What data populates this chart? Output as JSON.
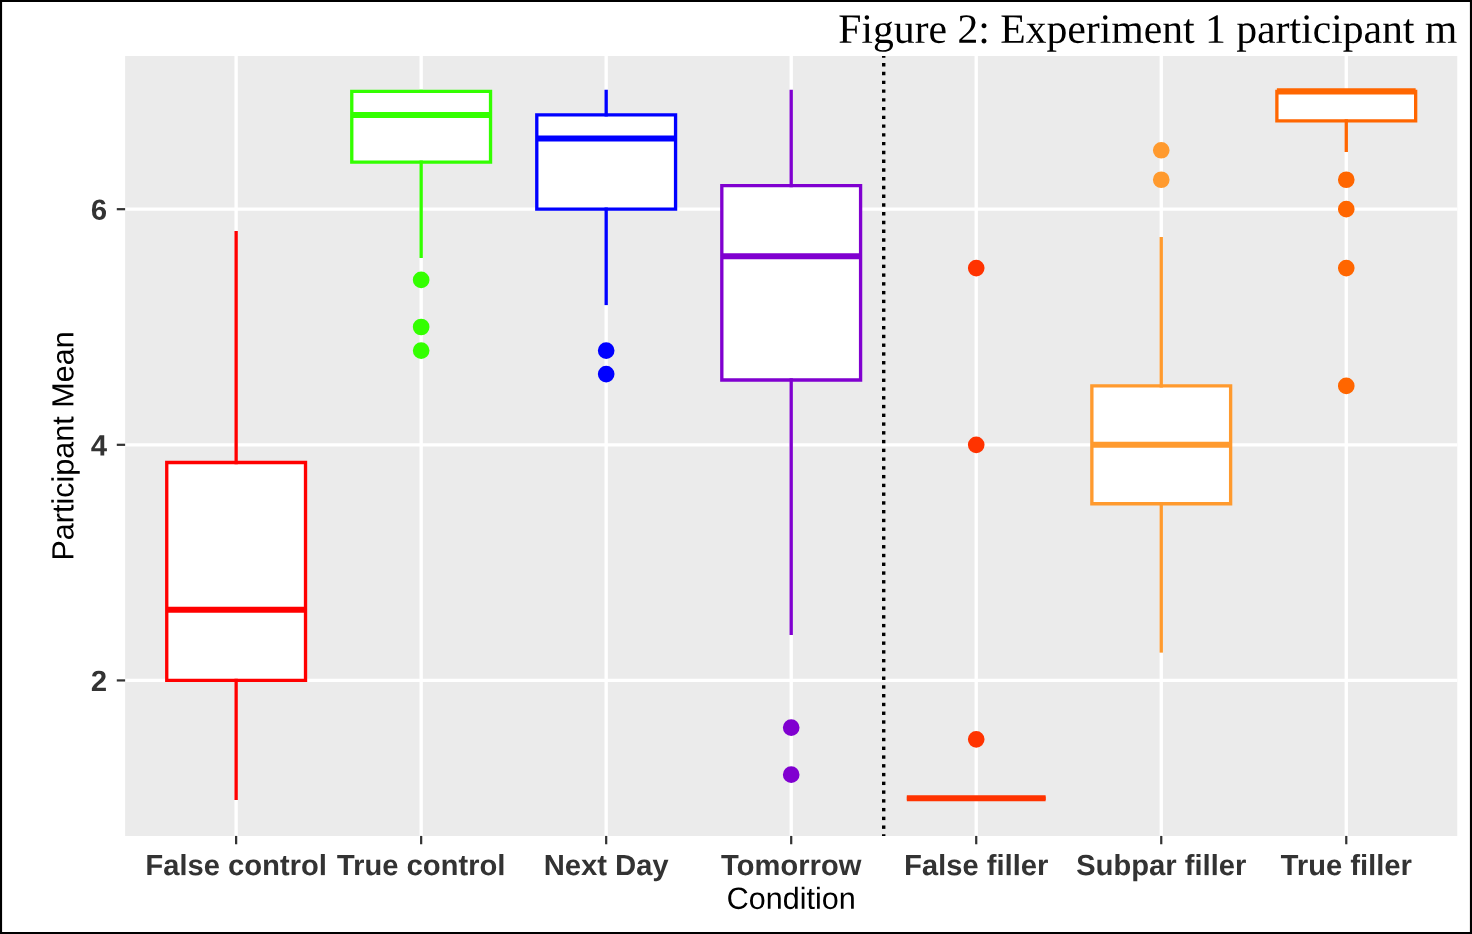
{
  "chart_data": {
    "type": "box",
    "title": "Figure 2: Experiment 1 participant m",
    "xlabel": "Condition",
    "ylabel": "Participant Mean",
    "categories": [
      "False control",
      "True control",
      "Next Day",
      "Tomorrow",
      "False filler",
      "Subpar filler",
      "True filler"
    ],
    "colors": [
      "#ff0000",
      "#33ff00",
      "#0000ff",
      "#8000d0",
      "#ff3300",
      "#ff9a2e",
      "#ff6600"
    ],
    "boxes": [
      {
        "low": 1.0,
        "q1": 2.0,
        "median": 2.6,
        "q3": 3.85,
        "high": 5.8
      },
      {
        "low": 5.6,
        "q1": 6.4,
        "median": 6.8,
        "q3": 7.0,
        "high": 7.0,
        "outliers": [
          5.4,
          5.0,
          4.8
        ]
      },
      {
        "low": 5.2,
        "q1": 6.0,
        "median": 6.6,
        "q3": 6.8,
        "high": 7.0,
        "outliers": [
          4.8,
          4.6
        ]
      },
      {
        "low": 2.4,
        "q1": 4.55,
        "median": 5.6,
        "q3": 6.2,
        "high": 7.0,
        "outliers": [
          1.6,
          1.2
        ]
      },
      {
        "low": 1.0,
        "q1": 1.0,
        "median": 1.0,
        "q3": 1.0,
        "high": 1.0,
        "outliers": [
          5.5,
          4.0,
          1.5
        ]
      },
      {
        "low": 2.25,
        "q1": 3.5,
        "median": 4.0,
        "q3": 4.5,
        "high": 5.75,
        "outliers": [
          6.5,
          6.25
        ]
      },
      {
        "low": 6.5,
        "q1": 6.75,
        "median": 7.0,
        "q3": 7.0,
        "high": 7.0,
        "outliers": [
          6.25,
          6.0,
          5.5,
          4.5
        ]
      }
    ],
    "ylim": [
      0.68,
      7.3
    ],
    "yticks": [
      2,
      4,
      6
    ],
    "grid": true
  }
}
